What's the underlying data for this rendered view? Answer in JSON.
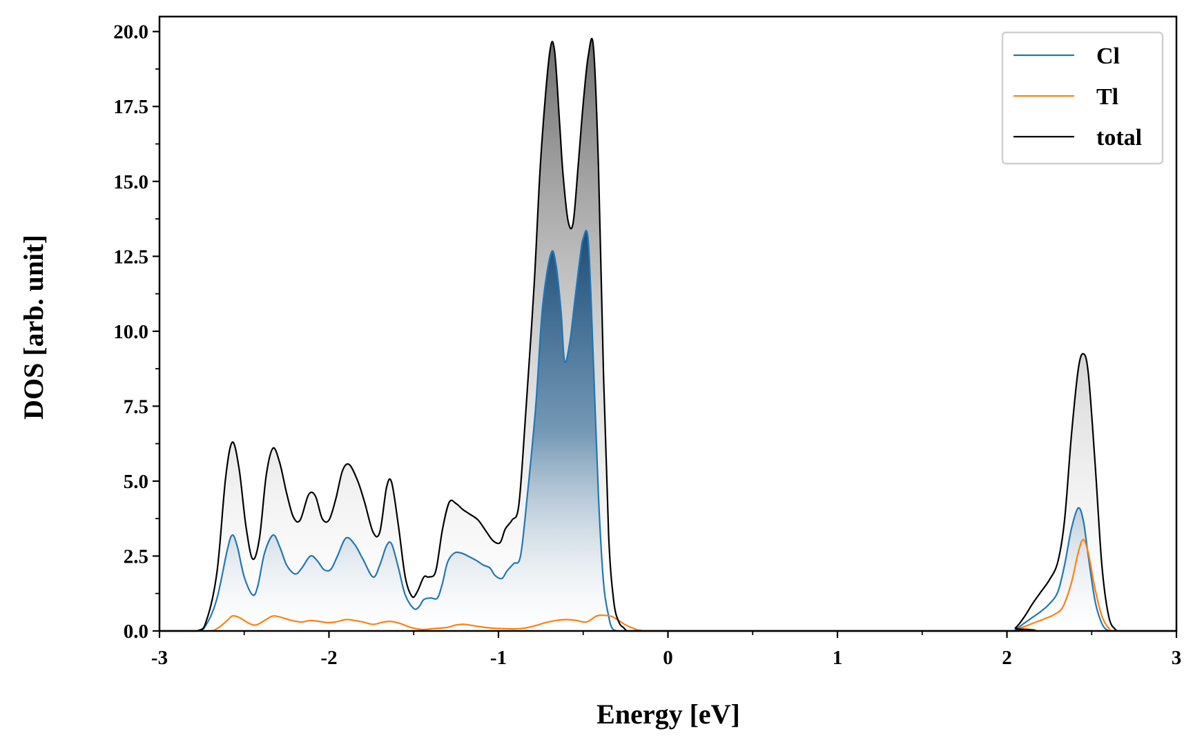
{
  "chart_data": {
    "type": "area",
    "title": "",
    "xlabel": "Energy [eV]",
    "ylabel": "DOS [arb. unit]",
    "xlim": [
      -3,
      3
    ],
    "ylim": [
      0,
      20.5
    ],
    "xticks": [
      -3,
      -2,
      -1,
      0,
      1,
      2,
      3
    ],
    "xtick_labels": [
      "-3",
      "-2",
      "-1",
      "0",
      "1",
      "2",
      "3"
    ],
    "yticks": [
      0,
      2.5,
      5,
      7.5,
      10,
      12.5,
      15,
      17.5,
      20
    ],
    "ytick_labels": [
      "0.0",
      "2.5",
      "5.0",
      "7.5",
      "10.0",
      "12.5",
      "15.0",
      "17.5",
      "20.0"
    ],
    "grid": false,
    "legend_position": "top-right",
    "series": [
      {
        "name": "Cl",
        "color": "#1f77b4",
        "fill": "blue-gradient",
        "x": [
          -3.0,
          -2.78,
          -2.72,
          -2.66,
          -2.6,
          -2.57,
          -2.54,
          -2.5,
          -2.45,
          -2.42,
          -2.38,
          -2.33,
          -2.29,
          -2.25,
          -2.2,
          -2.16,
          -2.11,
          -2.07,
          -2.03,
          -1.99,
          -1.95,
          -1.9,
          -1.85,
          -1.8,
          -1.74,
          -1.7,
          -1.66,
          -1.63,
          -1.59,
          -1.55,
          -1.5,
          -1.47,
          -1.44,
          -1.4,
          -1.36,
          -1.33,
          -1.3,
          -1.26,
          -1.22,
          -1.18,
          -1.13,
          -1.09,
          -1.05,
          -1.02,
          -0.98,
          -0.95,
          -0.91,
          -0.87,
          -0.83,
          -0.78,
          -0.74,
          -0.69,
          -0.66,
          -0.63,
          -0.61,
          -0.58,
          -0.55,
          -0.52,
          -0.5,
          -0.47,
          -0.44,
          -0.41,
          -0.38,
          -0.35,
          -0.33,
          -0.3,
          -0.27,
          -0.24,
          -0.21,
          -0.18,
          -0.16,
          -0.14,
          0.0,
          2.0,
          2.05,
          2.1,
          2.15,
          2.2,
          2.25,
          2.3,
          2.34,
          2.38,
          2.42,
          2.45,
          2.48,
          2.52,
          2.56,
          2.6,
          2.64,
          2.68,
          3.0
        ],
        "values": [
          0,
          0,
          0.25,
          1.1,
          2.7,
          3.2,
          2.8,
          1.8,
          1.2,
          1.5,
          2.6,
          3.2,
          2.8,
          2.2,
          1.9,
          2.1,
          2.5,
          2.35,
          2.05,
          2.05,
          2.5,
          3.1,
          2.9,
          2.4,
          1.8,
          2.2,
          2.85,
          2.9,
          2.1,
          1.2,
          0.75,
          0.8,
          1.05,
          1.1,
          1.1,
          1.6,
          2.3,
          2.6,
          2.6,
          2.5,
          2.35,
          2.2,
          2.1,
          1.85,
          1.75,
          2.0,
          2.25,
          2.5,
          4.5,
          7.5,
          10.8,
          12.6,
          12.2,
          10.6,
          9.0,
          9.6,
          11.0,
          12.4,
          13.1,
          13.0,
          9.0,
          4.5,
          1.6,
          0.5,
          0.1,
          0,
          0,
          0,
          0,
          0,
          0,
          0,
          0,
          0,
          0.05,
          0.25,
          0.45,
          0.65,
          0.9,
          1.3,
          2.2,
          3.4,
          4.1,
          3.7,
          2.5,
          1.0,
          0.25,
          0,
          0,
          0,
          0
        ]
      },
      {
        "name": "Tl",
        "color": "#ff7f0e",
        "x": [
          -3.0,
          -2.72,
          -2.66,
          -2.6,
          -2.57,
          -2.53,
          -2.47,
          -2.43,
          -2.38,
          -2.33,
          -2.28,
          -2.22,
          -2.16,
          -2.11,
          -2.06,
          -2.01,
          -1.96,
          -1.9,
          -1.85,
          -1.8,
          -1.74,
          -1.69,
          -1.64,
          -1.58,
          -1.52,
          -1.45,
          -1.38,
          -1.3,
          -1.25,
          -1.2,
          -1.12,
          -1.05,
          -0.98,
          -0.9,
          -0.84,
          -0.78,
          -0.72,
          -0.66,
          -0.6,
          -0.54,
          -0.48,
          -0.42,
          -0.37,
          -0.33,
          -0.29,
          -0.25,
          -0.2,
          -0.16,
          0.0,
          2.0,
          2.08,
          2.15,
          2.22,
          2.28,
          2.33,
          2.38,
          2.42,
          2.45,
          2.48,
          2.52,
          2.56,
          2.6,
          2.65,
          3.0
        ],
        "values": [
          0,
          0,
          0.08,
          0.35,
          0.5,
          0.45,
          0.25,
          0.2,
          0.35,
          0.5,
          0.45,
          0.35,
          0.3,
          0.35,
          0.32,
          0.28,
          0.3,
          0.38,
          0.35,
          0.3,
          0.22,
          0.28,
          0.32,
          0.25,
          0.12,
          0.05,
          0.08,
          0.12,
          0.2,
          0.22,
          0.15,
          0.1,
          0.08,
          0.07,
          0.1,
          0.18,
          0.28,
          0.35,
          0.38,
          0.35,
          0.3,
          0.5,
          0.52,
          0.48,
          0.35,
          0.2,
          0.08,
          0.02,
          0,
          0,
          0.1,
          0.25,
          0.4,
          0.55,
          0.8,
          1.6,
          2.6,
          3.05,
          2.6,
          1.4,
          0.5,
          0.1,
          0,
          0
        ]
      },
      {
        "name": "total",
        "color": "#000000",
        "fill": "gray-gradient",
        "x": [
          -3.0,
          -2.78,
          -2.72,
          -2.66,
          -2.61,
          -2.57,
          -2.53,
          -2.49,
          -2.45,
          -2.41,
          -2.37,
          -2.33,
          -2.29,
          -2.25,
          -2.21,
          -2.17,
          -2.12,
          -2.08,
          -2.04,
          -2.0,
          -1.96,
          -1.92,
          -1.88,
          -1.83,
          -1.79,
          -1.74,
          -1.7,
          -1.66,
          -1.63,
          -1.59,
          -1.55,
          -1.51,
          -1.48,
          -1.44,
          -1.41,
          -1.37,
          -1.33,
          -1.29,
          -1.25,
          -1.21,
          -1.17,
          -1.12,
          -1.07,
          -1.03,
          -0.99,
          -0.96,
          -0.92,
          -0.88,
          -0.84,
          -0.79,
          -0.75,
          -0.7,
          -0.67,
          -0.64,
          -0.62,
          -0.59,
          -0.56,
          -0.53,
          -0.5,
          -0.47,
          -0.44,
          -0.41,
          -0.38,
          -0.35,
          -0.32,
          -0.29,
          -0.26,
          -0.24,
          -0.21,
          -0.18,
          -0.16,
          -0.14,
          0.0,
          2.0,
          2.05,
          2.1,
          2.15,
          2.2,
          2.25,
          2.3,
          2.34,
          2.38,
          2.42,
          2.45,
          2.48,
          2.52,
          2.56,
          2.6,
          2.64,
          2.68,
          3.0
        ],
        "values": [
          0,
          0,
          0.4,
          2.0,
          5.1,
          6.3,
          5.4,
          3.5,
          2.4,
          3.1,
          5.2,
          6.1,
          5.6,
          4.6,
          3.8,
          3.7,
          4.55,
          4.5,
          3.75,
          3.7,
          4.4,
          5.35,
          5.55,
          5.0,
          4.3,
          3.3,
          3.3,
          4.8,
          4.95,
          3.5,
          1.8,
          1.15,
          1.3,
          1.8,
          1.8,
          2.0,
          3.4,
          4.3,
          4.25,
          4.05,
          3.9,
          3.7,
          3.3,
          3.0,
          2.95,
          3.4,
          3.7,
          4.2,
          7.2,
          11.5,
          15.8,
          19.2,
          19.4,
          17.0,
          15.3,
          13.7,
          13.6,
          15.5,
          17.6,
          19.2,
          19.5,
          15.5,
          8.5,
          3.2,
          1.0,
          0.3,
          0.1,
          0,
          0,
          0,
          0,
          0,
          0,
          0,
          0.1,
          0.45,
          0.9,
          1.3,
          1.7,
          2.3,
          3.7,
          6.5,
          8.7,
          9.25,
          8.6,
          5.6,
          2.2,
          0.5,
          0.05,
          0,
          0
        ]
      }
    ]
  }
}
